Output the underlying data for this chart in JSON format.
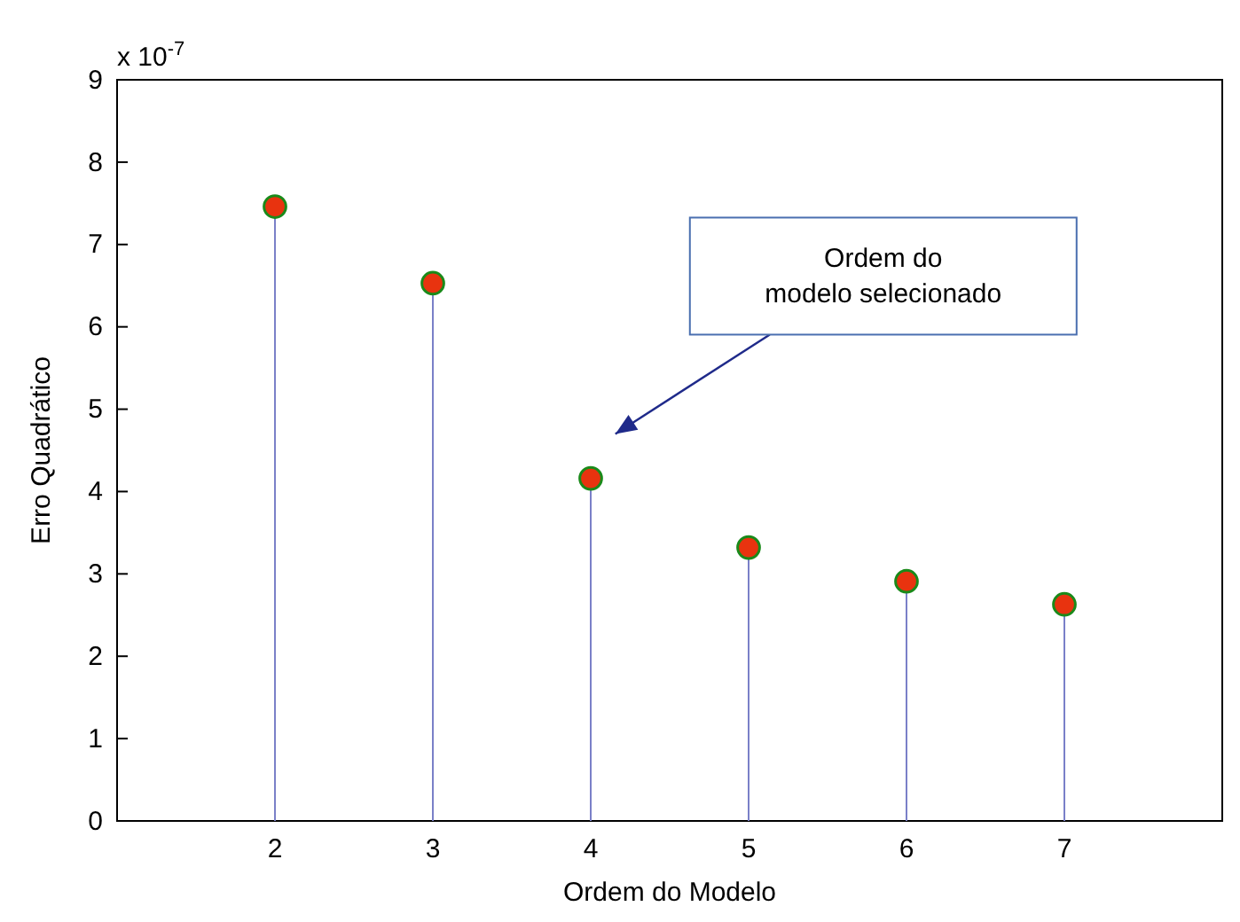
{
  "chart_data": {
    "type": "lollipop",
    "xlabel": "Ordem do Modelo",
    "ylabel": "Erro Quadrático",
    "x": [
      2,
      3,
      4,
      5,
      6,
      7
    ],
    "series": [
      {
        "color": "#e8330f",
        "values": [
          7.46,
          6.53,
          4.16,
          3.32,
          2.91,
          2.63
        ]
      }
    ],
    "xlim": [
      1,
      8
    ],
    "xticks": [
      2,
      3,
      4,
      5,
      6,
      7
    ],
    "ylim": [
      0,
      9
    ],
    "yticks": [
      0,
      1,
      2,
      3,
      4,
      5,
      6,
      7,
      8,
      9
    ],
    "marker": "circle",
    "annotations": [
      "x 10$^{-7}$",
      "Ordem do\nmodelo selecionado"
    ]
  }
}
